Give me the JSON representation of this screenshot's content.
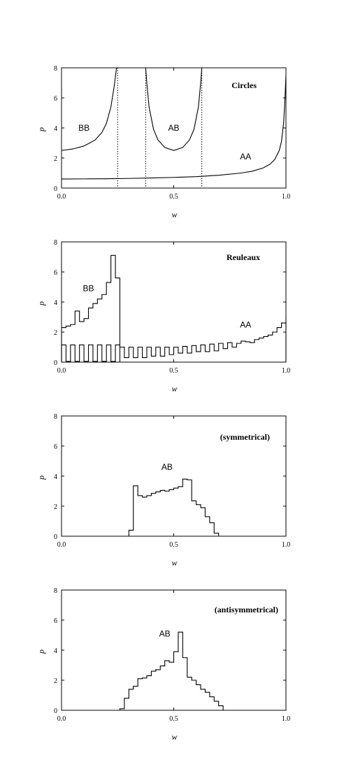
{
  "chart_data": [
    {
      "type": "line",
      "title": "Circles",
      "xlabel": "w",
      "ylabel": "p",
      "xlim": [
        0,
        1
      ],
      "ylim": [
        0,
        8
      ],
      "xticks": [
        "0.0",
        "0.5",
        "1.0"
      ],
      "yticks": [
        "0",
        "2",
        "4",
        "6",
        "8"
      ],
      "annotations": [
        {
          "text": "BB",
          "x": 0.1,
          "y": 4.0
        },
        {
          "text": "AB",
          "x": 0.5,
          "y": 4.0
        },
        {
          "text": "AA",
          "x": 0.82,
          "y": 2.1
        }
      ],
      "vlines": [
        0.25,
        0.375,
        0.625
      ],
      "series": [
        {
          "x": [
            0.0,
            0.05,
            0.1,
            0.15,
            0.18,
            0.2,
            0.22,
            0.235,
            0.245,
            0.25
          ],
          "y": [
            2.5,
            2.6,
            2.8,
            3.2,
            3.7,
            4.3,
            5.4,
            6.8,
            8.0,
            8.0
          ]
        },
        {
          "x": [
            0.375,
            0.38,
            0.39,
            0.41,
            0.43,
            0.46,
            0.5,
            0.54,
            0.57,
            0.59,
            0.61,
            0.62,
            0.625
          ],
          "y": [
            8.0,
            7.0,
            5.4,
            3.9,
            3.2,
            2.7,
            2.5,
            2.7,
            3.2,
            3.9,
            5.4,
            7.0,
            8.0
          ]
        },
        {
          "x": [
            0.0,
            0.1,
            0.2,
            0.3,
            0.4,
            0.5,
            0.6,
            0.7,
            0.8,
            0.85,
            0.9,
            0.93,
            0.95,
            0.97,
            0.98,
            0.99,
            0.995,
            1.0
          ],
          "y": [
            0.6,
            0.61,
            0.62,
            0.64,
            0.67,
            0.71,
            0.76,
            0.85,
            1.0,
            1.12,
            1.35,
            1.6,
            1.9,
            2.5,
            3.1,
            4.4,
            5.8,
            7.5
          ]
        }
      ]
    },
    {
      "type": "line",
      "title": "Reuleaux",
      "xlabel": "w",
      "ylabel": "p",
      "xlim": [
        0,
        1
      ],
      "ylim": [
        0,
        8
      ],
      "xticks": [
        "0.0",
        "0.5",
        "1.0"
      ],
      "yticks": [
        "0",
        "2",
        "4",
        "6",
        "8"
      ],
      "annotations": [
        {
          "text": "BB",
          "x": 0.12,
          "y": 4.9
        },
        {
          "text": "AA",
          "x": 0.82,
          "y": 2.5
        }
      ],
      "series": [
        {
          "x": [
            0.0,
            0.02,
            0.04,
            0.06,
            0.08,
            0.1,
            0.12,
            0.14,
            0.16,
            0.18,
            0.2,
            0.22,
            0.24,
            0.26
          ],
          "y": [
            2.3,
            2.4,
            2.5,
            3.4,
            2.7,
            2.9,
            3.6,
            3.9,
            4.2,
            4.5,
            5.3,
            7.1,
            5.6,
            0.0
          ]
        },
        {
          "x": [
            0.0,
            0.02,
            0.04,
            0.06,
            0.08,
            0.1,
            0.12,
            0.14,
            0.16,
            0.18,
            0.2,
            0.22,
            0.24,
            0.26,
            0.28,
            0.3,
            0.32,
            0.34,
            0.36,
            0.38,
            0.4,
            0.42,
            0.44,
            0.46,
            0.48,
            0.5,
            0.52,
            0.54,
            0.56,
            0.58,
            0.6,
            0.62,
            0.64,
            0.66,
            0.68,
            0.7,
            0.72,
            0.74,
            0.76,
            0.78,
            0.8,
            0.82,
            0.84,
            0.86,
            0.88,
            0.9,
            0.92,
            0.94,
            0.96,
            0.98,
            1.0
          ],
          "y": [
            1.15,
            0.05,
            1.15,
            0.05,
            1.15,
            0.05,
            1.15,
            0.05,
            1.15,
            0.05,
            1.15,
            0.05,
            1.15,
            1.0,
            0.3,
            1.0,
            0.3,
            1.0,
            0.3,
            1.0,
            0.4,
            1.0,
            0.4,
            1.0,
            0.5,
            1.0,
            0.6,
            1.05,
            0.6,
            1.1,
            0.7,
            1.15,
            0.7,
            1.2,
            0.75,
            1.25,
            0.9,
            1.3,
            1.0,
            1.25,
            1.4,
            1.35,
            1.3,
            1.5,
            1.6,
            1.7,
            1.8,
            2.0,
            2.3,
            2.6,
            3.05
          ]
        }
      ]
    },
    {
      "type": "line",
      "title": "(symmetrical)",
      "xlabel": "w",
      "ylabel": "p",
      "xlim": [
        0,
        1
      ],
      "ylim": [
        0,
        8
      ],
      "xticks": [
        "0.0",
        "0.5",
        "1.0"
      ],
      "yticks": [
        "0",
        "2",
        "4",
        "6",
        "8"
      ],
      "annotations": [
        {
          "text": "AB",
          "x": 0.47,
          "y": 4.6
        }
      ],
      "series": [
        {
          "x": [
            0.3,
            0.32,
            0.34,
            0.36,
            0.38,
            0.4,
            0.42,
            0.44,
            0.46,
            0.48,
            0.5,
            0.52,
            0.54,
            0.56,
            0.58,
            0.6,
            0.62,
            0.64,
            0.66,
            0.68,
            0.7
          ],
          "y": [
            0.4,
            3.35,
            2.7,
            2.6,
            2.7,
            2.85,
            2.95,
            3.05,
            3.0,
            3.1,
            3.2,
            3.3,
            3.8,
            3.75,
            2.35,
            2.1,
            1.9,
            1.3,
            0.9,
            0.2,
            0.0
          ]
        }
      ]
    },
    {
      "type": "line",
      "title": "(antisymmetrical)",
      "xlabel": "w",
      "ylabel": "p",
      "xlim": [
        0,
        1
      ],
      "ylim": [
        0,
        8
      ],
      "xticks": [
        "0.0",
        "0.5",
        "1.0"
      ],
      "yticks": [
        "0",
        "2",
        "4",
        "6",
        "8"
      ],
      "annotations": [
        {
          "text": "AB",
          "x": 0.46,
          "y": 5.1
        }
      ],
      "series": [
        {
          "x": [
            0.26,
            0.28,
            0.3,
            0.32,
            0.34,
            0.36,
            0.38,
            0.4,
            0.42,
            0.44,
            0.46,
            0.48,
            0.5,
            0.52,
            0.54,
            0.56,
            0.58,
            0.6,
            0.62,
            0.64,
            0.66,
            0.68,
            0.7,
            0.72
          ],
          "y": [
            0.1,
            0.8,
            1.4,
            1.6,
            2.1,
            2.15,
            2.3,
            2.6,
            2.7,
            2.95,
            3.3,
            3.2,
            3.9,
            5.2,
            3.5,
            2.2,
            2.0,
            1.7,
            1.4,
            1.2,
            0.9,
            0.6,
            0.3,
            0.0
          ]
        }
      ]
    }
  ]
}
